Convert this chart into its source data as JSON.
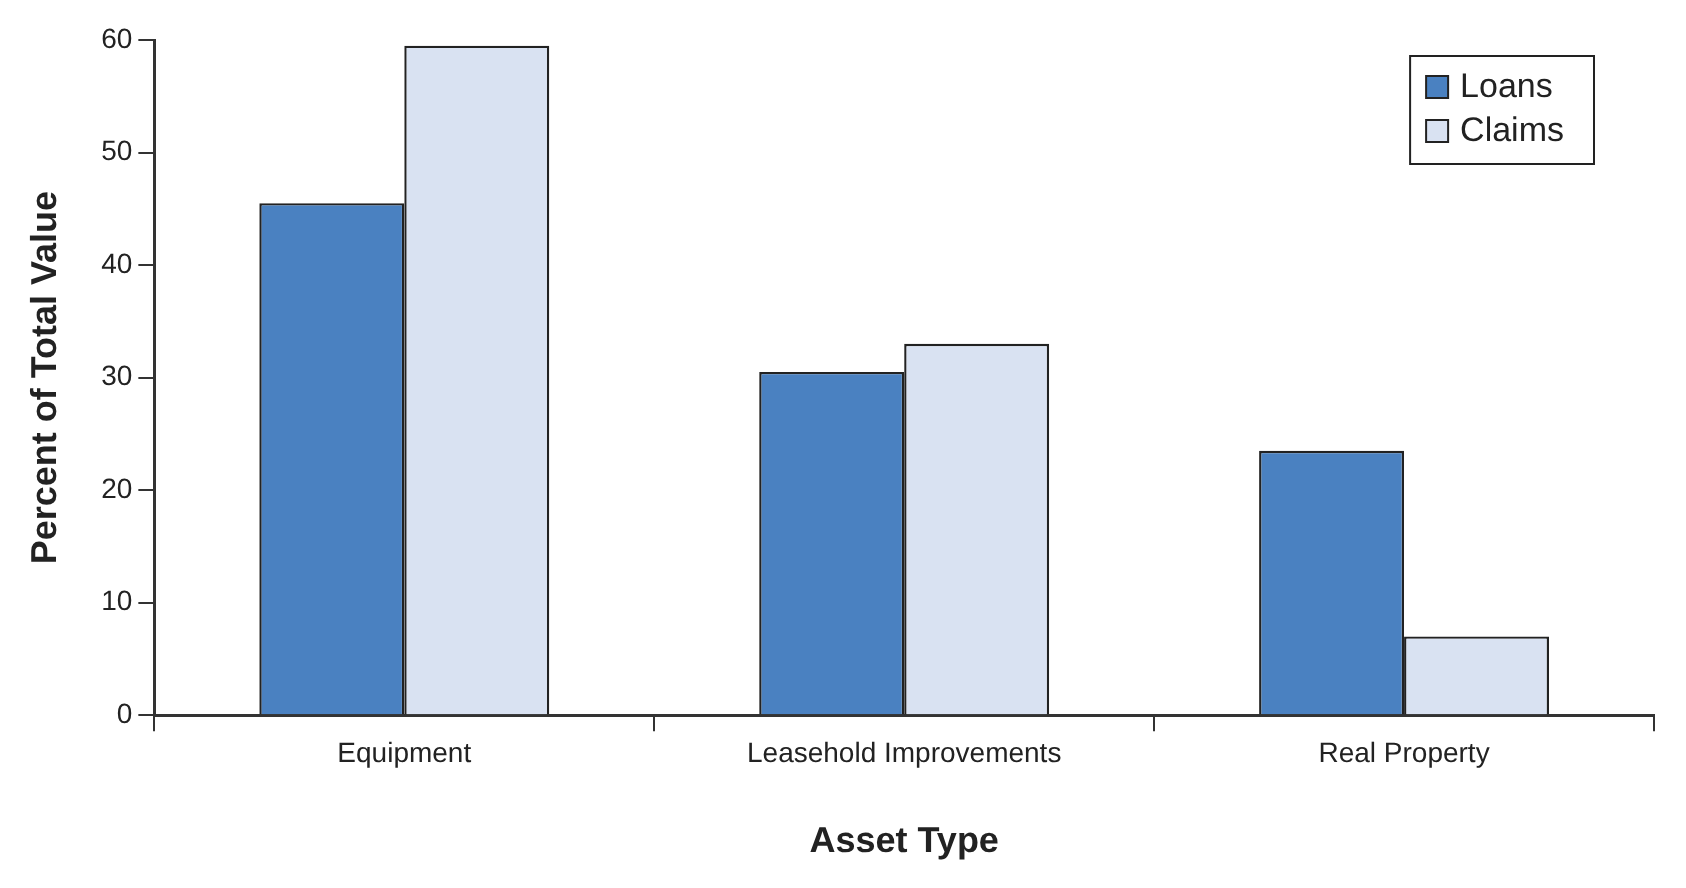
{
  "chart_data": {
    "type": "bar",
    "xlabel": "Asset Type",
    "ylabel": "Percent of Total Value",
    "categories": [
      "Equipment",
      "Leasehold Improvements",
      "Real Property"
    ],
    "series": [
      {
        "name": "Loans",
        "color": "#4a81c1",
        "values": [
          45.5,
          30.5,
          23.5
        ]
      },
      {
        "name": "Claims",
        "color": "#d9e2f2",
        "values": [
          59.5,
          33,
          7
        ]
      }
    ],
    "ylim": [
      0,
      60
    ],
    "yticks": [
      0,
      10,
      20,
      30,
      40,
      50,
      60
    ],
    "grid": false,
    "legend": "top right"
  }
}
